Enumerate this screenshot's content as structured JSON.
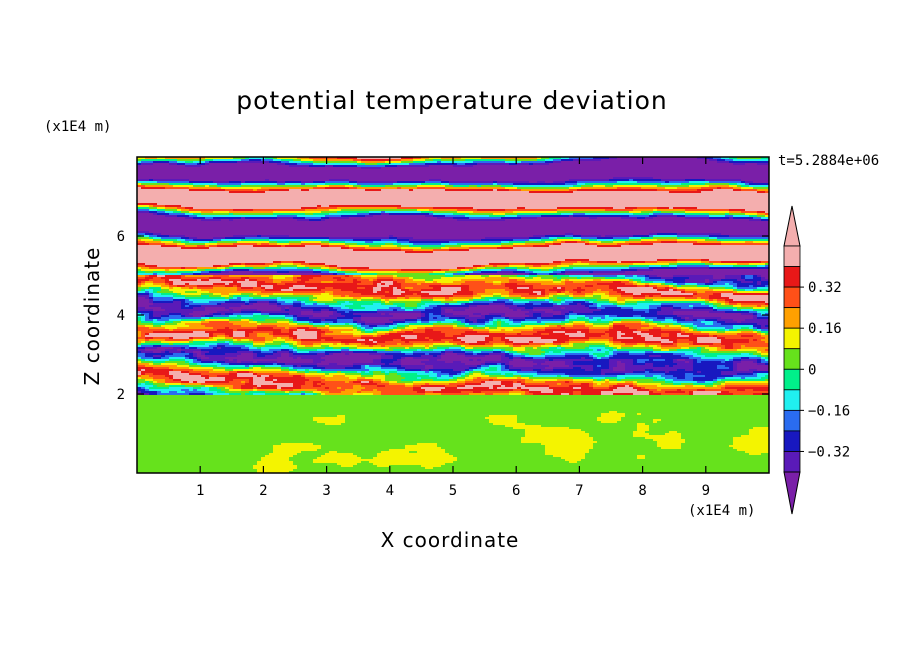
{
  "chart_data": {
    "type": "heatmap",
    "title": "potential temperature deviation",
    "xlabel": "X coordinate",
    "ylabel": "Z coordinate",
    "x_unit": "(x1E4 m)",
    "y_unit": "(x1E4 m)",
    "annotation": "t=5.2884e+06",
    "xlim": [
      0,
      10
    ],
    "ylim": [
      0,
      8
    ],
    "x_ticks": [
      "1",
      "2",
      "3",
      "4",
      "5",
      "6",
      "7",
      "8",
      "9"
    ],
    "y_ticks": [
      "2",
      "4",
      "6"
    ],
    "colorbar": {
      "levels": [
        -0.4,
        -0.32,
        -0.24,
        -0.16,
        -0.08,
        0,
        0.08,
        0.16,
        0.24,
        0.32,
        0.4
      ],
      "tick_labels": [
        "0.32",
        "0.16",
        "0",
        "−0.16",
        "−0.32"
      ],
      "tick_values": [
        0.32,
        0.16,
        0,
        -0.16,
        -0.32
      ],
      "colors_low_to_high": [
        "#7a1fa8",
        "#5a1ab8",
        "#1818c0",
        "#2a6cf0",
        "#20f0f0",
        "#00f08a",
        "#66e21c",
        "#f4f400",
        "#ffa000",
        "#ff5018",
        "#e81818"
      ],
      "over_color": "#f4aeae",
      "under_color": "#7a1fa8"
    },
    "regions": [
      {
        "z_range": [
          0,
          2.0
        ],
        "description": "near-zero field dominated by 0 to 0.08 band with small 0.08–0.16 patches"
      },
      {
        "z_range": [
          2.0,
          5.0
        ],
        "description": "strongly mixed layer spanning the full range −0.40 to 0.40"
      },
      {
        "z_range": [
          5.0,
          8.0
        ],
        "description": "alternating horizontal bands of values above 0.40 and below −0.40"
      }
    ]
  }
}
